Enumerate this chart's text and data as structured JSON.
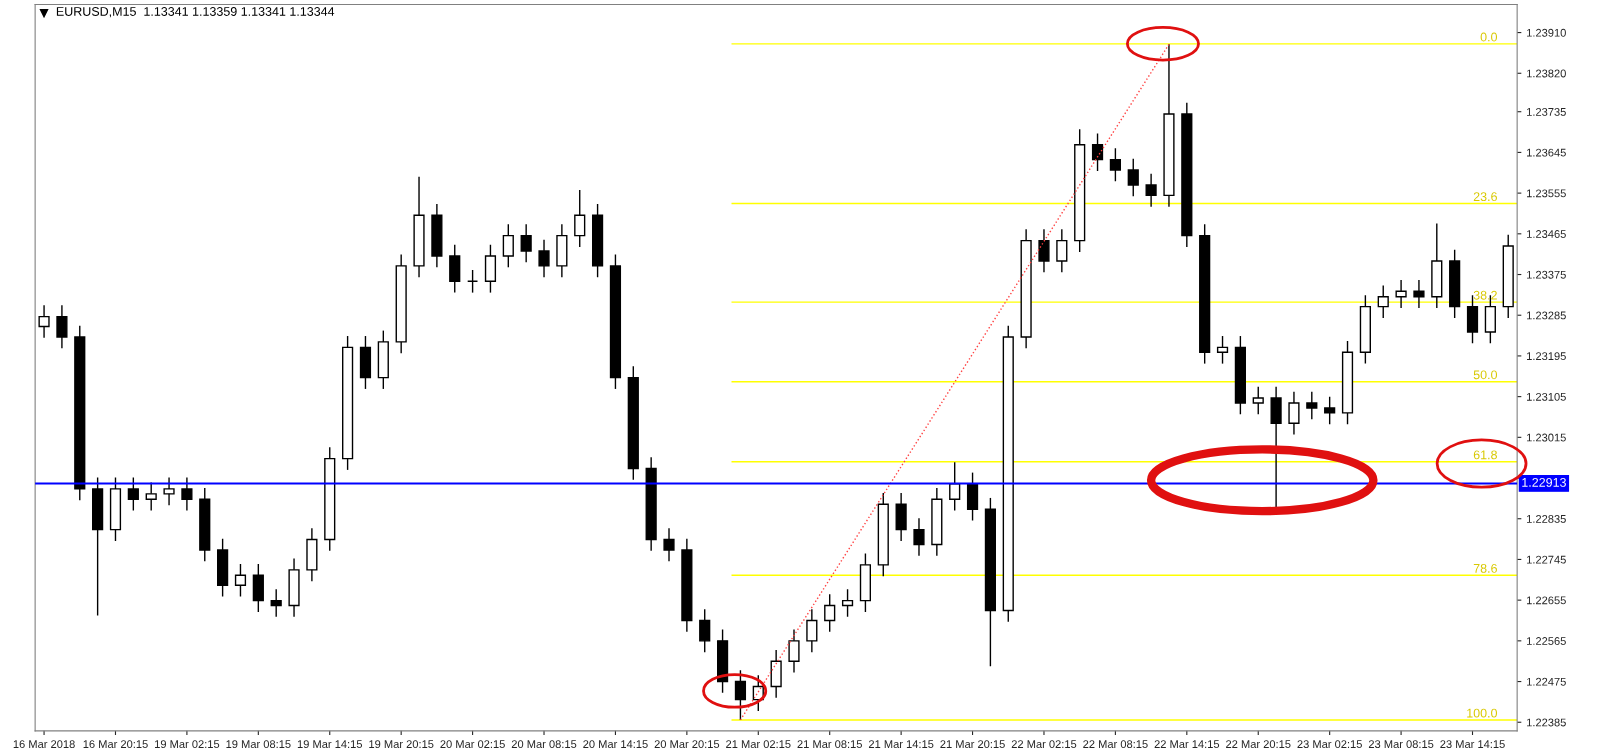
{
  "chart_data": {
    "type": "candlestick",
    "title": "EURUSD,M15  1.13341 1.13359 1.13341 1.13344",
    "categories": [
      "16 Mar 2018",
      null,
      null,
      null,
      "16 Mar 20:15",
      null,
      null,
      null,
      "19 Mar 02:15",
      null,
      null,
      null,
      "19 Mar 08:15",
      null,
      null,
      null,
      "19 Mar 14:15",
      null,
      null,
      null,
      "19 Mar 20:15",
      null,
      null,
      null,
      "20 Mar 02:15",
      null,
      null,
      null,
      "20 Mar 08:15",
      null,
      null,
      null,
      "20 Mar 14:15",
      null,
      null,
      null,
      "20 Mar 20:15",
      null,
      null,
      null,
      "21 Mar 02:15",
      null,
      null,
      null,
      "21 Mar 08:15",
      null,
      null,
      null,
      "21 Mar 14:15",
      null,
      null,
      null,
      "21 Mar 20:15",
      null,
      null,
      null,
      "22 Mar 02:15",
      null,
      null,
      null,
      "22 Mar 08:15",
      null,
      null,
      null,
      "22 Mar 14:15",
      null,
      null,
      null,
      "22 Mar 20:15",
      null,
      null,
      null,
      "23 Mar 02:15",
      null,
      null,
      null,
      "23 Mar 08:15",
      null,
      null,
      null,
      "23 Mar 14:15",
      null,
      null
    ],
    "ohlc": [
      [
        1.2326,
        1.23307,
        1.23235,
        1.23282
      ],
      [
        1.23282,
        1.23307,
        1.23212,
        1.23237
      ],
      [
        1.23237,
        1.23262,
        1.22876,
        1.22901
      ],
      [
        1.22901,
        1.22926,
        1.22621,
        1.22811
      ],
      [
        1.22811,
        1.22926,
        1.22786,
        1.22901
      ],
      [
        1.22901,
        1.22926,
        1.22853,
        1.22878
      ],
      [
        1.22878,
        1.22915,
        1.22853,
        1.2289
      ],
      [
        1.2289,
        1.22926,
        1.22865,
        1.22901
      ],
      [
        1.22901,
        1.22926,
        1.22853,
        1.22878
      ],
      [
        1.22878,
        1.22903,
        1.22741,
        1.22766
      ],
      [
        1.22766,
        1.22791,
        1.22663,
        1.22688
      ],
      [
        1.22688,
        1.22735,
        1.22663,
        1.2271
      ],
      [
        1.2271,
        1.22735,
        1.22629,
        1.22654
      ],
      [
        1.22654,
        1.22679,
        1.22618,
        1.22643
      ],
      [
        1.22643,
        1.22747,
        1.22618,
        1.22722
      ],
      [
        1.22722,
        1.22814,
        1.22697,
        1.22789
      ],
      [
        1.22789,
        1.22993,
        1.22764,
        1.22968
      ],
      [
        1.22968,
        1.23239,
        1.22943,
        1.23214
      ],
      [
        1.23214,
        1.23239,
        1.23122,
        1.23147
      ],
      [
        1.23147,
        1.23251,
        1.23122,
        1.23226
      ],
      [
        1.23226,
        1.23419,
        1.23201,
        1.23394
      ],
      [
        1.23394,
        1.23591,
        1.23369,
        1.23506
      ],
      [
        1.23506,
        1.23531,
        1.23391,
        1.23416
      ],
      [
        1.23416,
        1.23441,
        1.23335,
        1.2336
      ],
      [
        1.2336,
        1.23385,
        1.23335,
        1.2336
      ],
      [
        1.2336,
        1.23441,
        1.23335,
        1.23416
      ],
      [
        1.23416,
        1.23486,
        1.23391,
        1.23461
      ],
      [
        1.23461,
        1.23486,
        1.23402,
        1.23427
      ],
      [
        1.23427,
        1.23452,
        1.23369,
        1.23394
      ],
      [
        1.23394,
        1.23486,
        1.23369,
        1.23461
      ],
      [
        1.23461,
        1.23562,
        1.23436,
        1.23506
      ],
      [
        1.23506,
        1.23531,
        1.23369,
        1.23394
      ],
      [
        1.23394,
        1.23419,
        1.23122,
        1.23147
      ],
      [
        1.23147,
        1.23172,
        1.22921,
        1.22946
      ],
      [
        1.22946,
        1.22971,
        1.22764,
        1.22789
      ],
      [
        1.22789,
        1.22814,
        1.22741,
        1.22766
      ],
      [
        1.22766,
        1.22791,
        1.22585,
        1.2261
      ],
      [
        1.2261,
        1.22635,
        1.2254,
        1.22565
      ],
      [
        1.22565,
        1.2259,
        1.2245,
        1.22475
      ],
      [
        1.22475,
        1.225,
        1.2239,
        1.22435
      ],
      [
        1.22435,
        1.22489,
        1.2241,
        1.22464
      ],
      [
        1.22464,
        1.22545,
        1.22439,
        1.2252
      ],
      [
        1.2252,
        1.2259,
        1.22495,
        1.22565
      ],
      [
        1.22565,
        1.22635,
        1.2254,
        1.2261
      ],
      [
        1.2261,
        1.22668,
        1.22585,
        1.22643
      ],
      [
        1.22643,
        1.22679,
        1.22618,
        1.22654
      ],
      [
        1.22654,
        1.22758,
        1.22629,
        1.22733
      ],
      [
        1.22733,
        1.22892,
        1.22708,
        1.22867
      ],
      [
        1.22867,
        1.22892,
        1.22786,
        1.22811
      ],
      [
        1.22811,
        1.22836,
        1.22753,
        1.22778
      ],
      [
        1.22778,
        1.22903,
        1.22753,
        1.22878
      ],
      [
        1.22878,
        1.2296,
        1.22853,
        1.22912
      ],
      [
        1.22912,
        1.22937,
        1.22831,
        1.22856
      ],
      [
        1.22856,
        1.22881,
        1.22509,
        1.22632
      ],
      [
        1.22632,
        1.23262,
        1.22607,
        1.23237
      ],
      [
        1.23237,
        1.23475,
        1.23212,
        1.2345
      ],
      [
        1.2345,
        1.23475,
        1.2338,
        1.23405
      ],
      [
        1.23405,
        1.23475,
        1.2338,
        1.2345
      ],
      [
        1.2345,
        1.23696,
        1.23425,
        1.23662
      ],
      [
        1.23662,
        1.23687,
        1.23604,
        1.23629
      ],
      [
        1.23629,
        1.23654,
        1.23581,
        1.23606
      ],
      [
        1.23606,
        1.23631,
        1.23548,
        1.23573
      ],
      [
        1.23573,
        1.23598,
        1.23525,
        1.2355
      ],
      [
        1.2355,
        1.23884,
        1.23525,
        1.2373
      ],
      [
        1.2373,
        1.23755,
        1.23436,
        1.23461
      ],
      [
        1.23461,
        1.23486,
        1.23178,
        1.23203
      ],
      [
        1.23203,
        1.23239,
        1.23178,
        1.23214
      ],
      [
        1.23214,
        1.23239,
        1.23066,
        1.23091
      ],
      [
        1.23091,
        1.23127,
        1.23066,
        1.23102
      ],
      [
        1.23102,
        1.23127,
        1.22856,
        1.23046
      ],
      [
        1.23046,
        1.23116,
        1.23021,
        1.23091
      ],
      [
        1.23091,
        1.23116,
        1.23055,
        1.2308
      ],
      [
        1.2308,
        1.23105,
        1.23044,
        1.23069
      ],
      [
        1.23069,
        1.23228,
        1.23044,
        1.23203
      ],
      [
        1.23203,
        1.23329,
        1.23178,
        1.23304
      ],
      [
        1.23304,
        1.23351,
        1.23279,
        1.23326
      ],
      [
        1.23326,
        1.23363,
        1.23301,
        1.23338
      ],
      [
        1.23338,
        1.23363,
        1.23301,
        1.23326
      ],
      [
        1.23326,
        1.23488,
        1.23301,
        1.23405
      ],
      [
        1.23405,
        1.2343,
        1.23279,
        1.23304
      ],
      [
        1.23304,
        1.23329,
        1.23223,
        1.23248
      ],
      [
        1.23248,
        1.23329,
        1.23223,
        1.23304
      ],
      [
        1.23304,
        1.23463,
        1.23279,
        1.23438
      ]
    ],
    "series": [
      {
        "type": "line",
        "color": "#ff4040",
        "line_style": "dotted",
        "values": [
          null,
          null,
          null,
          null,
          null,
          null,
          null,
          null,
          null,
          null,
          null,
          null,
          null,
          null,
          null,
          null,
          null,
          null,
          null,
          null,
          null,
          null,
          null,
          null,
          null,
          null,
          null,
          null,
          null,
          null,
          null,
          null,
          null,
          null,
          null,
          null,
          null,
          null,
          null,
          1.2239,
          null,
          null,
          null,
          null,
          null,
          null,
          null,
          null,
          null,
          null,
          null,
          null,
          null,
          null,
          null,
          null,
          null,
          null,
          null,
          null,
          null,
          null,
          null,
          1.23884,
          null,
          null,
          null,
          null,
          null,
          null,
          null,
          null,
          null,
          null,
          null,
          null,
          null,
          null,
          null,
          null,
          null,
          null,
          null
        ]
      }
    ],
    "ylim": [
      1.22366,
      1.23972
    ],
    "yticks": [
      {
        "value": 1.2391,
        "label": "1.23910"
      },
      {
        "value": 1.2382,
        "label": "1.23820"
      },
      {
        "value": 1.23735,
        "label": "1.23735"
      },
      {
        "value": 1.23645,
        "label": "1.23645"
      },
      {
        "value": 1.23555,
        "label": "1.23555"
      },
      {
        "value": 1.23465,
        "label": "1.23465"
      },
      {
        "value": 1.23375,
        "label": "1.23375"
      },
      {
        "value": 1.23285,
        "label": "1.23285"
      },
      {
        "value": 1.23195,
        "label": "1.23195"
      },
      {
        "value": 1.23105,
        "label": "1.23105"
      },
      {
        "value": 1.23015,
        "label": "1.23015"
      },
      {
        "value": 1.22925,
        "label": null
      },
      {
        "value": 1.22835,
        "label": "1.22835"
      },
      {
        "value": 1.22745,
        "label": "1.22745"
      },
      {
        "value": 1.22655,
        "label": "1.22655"
      },
      {
        "value": 1.22565,
        "label": "1.22565"
      },
      {
        "value": 1.22475,
        "label": "1.22475"
      },
      {
        "value": 1.22385,
        "label": "1.22385"
      }
    ],
    "ref_lines": [
      {
        "axis": "y",
        "value": 1.23885,
        "color": "#ffff00"
      },
      {
        "axis": "y",
        "value": 1.23532,
        "color": "#ffff00"
      },
      {
        "axis": "y",
        "value": 1.23314,
        "color": "#ffff00"
      },
      {
        "axis": "y",
        "value": 1.23138,
        "color": "#ffff00"
      },
      {
        "axis": "y",
        "value": 1.22961,
        "color": "#ffff00"
      },
      {
        "axis": "y",
        "value": 1.2271,
        "color": "#ffff00"
      },
      {
        "axis": "y",
        "value": 1.2239,
        "color": "#ffff00"
      },
      {
        "axis": "y",
        "value": 1.22913,
        "label": "1.22913",
        "color": "#0000ff"
      }
    ],
    "annotations": [
      {
        "text": "0.0",
        "y": 1.23885
      },
      {
        "text": "23.6",
        "y": 1.23532
      },
      {
        "text": "38.2",
        "y": 1.23314
      },
      {
        "text": "50.0",
        "y": 1.23138
      },
      {
        "text": "61.8",
        "y": 1.22961
      },
      {
        "text": "78.6",
        "y": 1.2271
      },
      {
        "text": "100.0",
        "y": 1.2239
      }
    ],
    "grid": false
  }
}
